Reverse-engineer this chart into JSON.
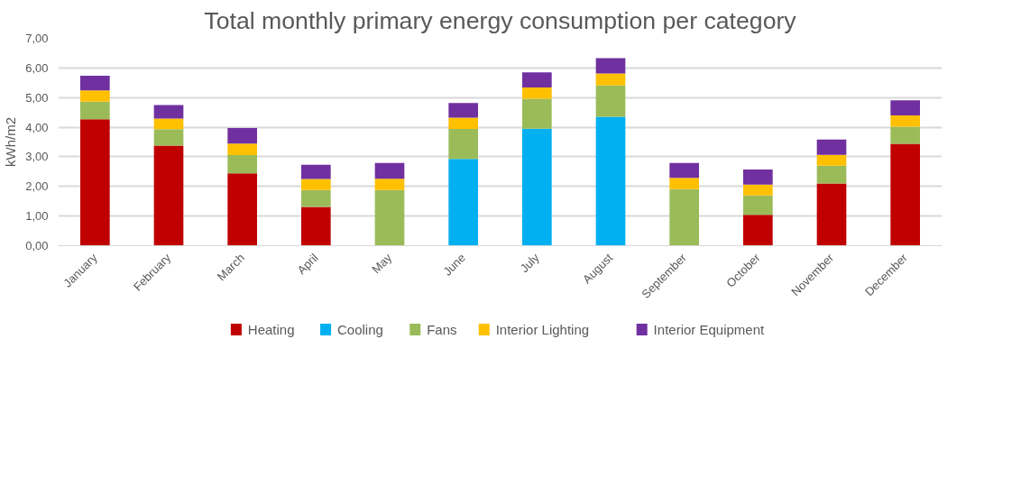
{
  "chart_data": {
    "type": "bar",
    "title": "Total monthly primary energy consumption per category",
    "ylabel": "kWh/m2",
    "categories": [
      "January",
      "February",
      "March",
      "April",
      "May",
      "June",
      "July",
      "August",
      "September",
      "October",
      "November",
      "December"
    ],
    "stacked": true,
    "series": [
      {
        "name": "Heating",
        "color": "#c00000",
        "values": [
          4.27,
          3.38,
          2.44,
          1.31,
          0,
          0,
          0,
          0,
          0,
          1.04,
          2.1,
          3.44
        ]
      },
      {
        "name": "Cooling",
        "color": "#00b0f0",
        "values": [
          0,
          0,
          0,
          0,
          0,
          2.93,
          3.95,
          4.35,
          0,
          0,
          0,
          0
        ]
      },
      {
        "name": "Fans",
        "color": "#9bbb59",
        "values": [
          0.59,
          0.55,
          0.62,
          0.57,
          1.88,
          1.01,
          1.01,
          1.06,
          1.91,
          0.66,
          0.6,
          0.58
        ]
      },
      {
        "name": "Interior Lighting",
        "color": "#ffc000",
        "values": [
          0.38,
          0.36,
          0.39,
          0.37,
          0.38,
          0.38,
          0.38,
          0.4,
          0.38,
          0.36,
          0.37,
          0.38
        ]
      },
      {
        "name": "Interior Equipment",
        "color": "#7030a0",
        "values": [
          0.5,
          0.46,
          0.52,
          0.48,
          0.53,
          0.5,
          0.51,
          0.52,
          0.5,
          0.51,
          0.51,
          0.51
        ]
      }
    ],
    "ylim": [
      0,
      7
    ],
    "yticks": [
      {
        "value": 0,
        "label": "0,00"
      },
      {
        "value": 1,
        "label": "1,00"
      },
      {
        "value": 2,
        "label": "2,00"
      },
      {
        "value": 3,
        "label": "3,00"
      },
      {
        "value": 4,
        "label": "4,00"
      },
      {
        "value": 5,
        "label": "5,00"
      },
      {
        "value": 6,
        "label": "6,00"
      },
      {
        "value": 7,
        "label": "7,00"
      }
    ],
    "grid": "y",
    "legend": "bottom"
  }
}
